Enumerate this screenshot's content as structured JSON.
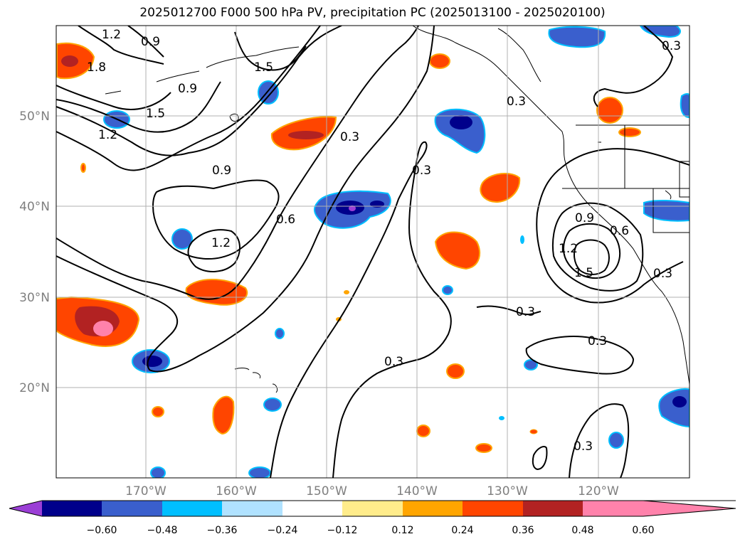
{
  "title": "2025012700 F000 500 hPa PV, precipitation PC (2025013100 - 2025020100)",
  "map": {
    "lon_labels": [
      "170°W",
      "160°W",
      "150°W",
      "140°W",
      "130°W",
      "120°W"
    ],
    "lat_labels": [
      "50°N",
      "40°N",
      "30°N",
      "20°N"
    ],
    "contour_labels": [
      {
        "text": "1.2"
      },
      {
        "text": "0.9"
      },
      {
        "text": "1.5"
      },
      {
        "text": "0.9"
      },
      {
        "text": "1.8"
      },
      {
        "text": "1.5"
      },
      {
        "text": "1.2"
      },
      {
        "text": "0.9"
      },
      {
        "text": "1.2"
      },
      {
        "text": "0.6"
      },
      {
        "text": "0.3"
      },
      {
        "text": "0.3"
      },
      {
        "text": "0.3"
      },
      {
        "text": "0.3"
      },
      {
        "text": "0.9"
      },
      {
        "text": "0.6"
      },
      {
        "text": "1.2"
      },
      {
        "text": "1.5"
      },
      {
        "text": "0.3"
      },
      {
        "text": "0.3"
      },
      {
        "text": "0.3"
      },
      {
        "text": "0.3"
      },
      {
        "text": "0.3"
      }
    ]
  },
  "colorbar": {
    "colors": [
      "#9b3fd6",
      "#00008b",
      "#3a5fcd",
      "#00bfff",
      "#b0e2ff",
      "#ffffff",
      "#ffec8b",
      "#ffa500",
      "#ff4500",
      "#b22222",
      "#ff82ab"
    ],
    "tick_labels": [
      "−0.60",
      "−0.48",
      "−0.36",
      "−0.24",
      "−0.12",
      "0.12",
      "0.24",
      "0.36",
      "0.48",
      "0.60"
    ]
  }
}
